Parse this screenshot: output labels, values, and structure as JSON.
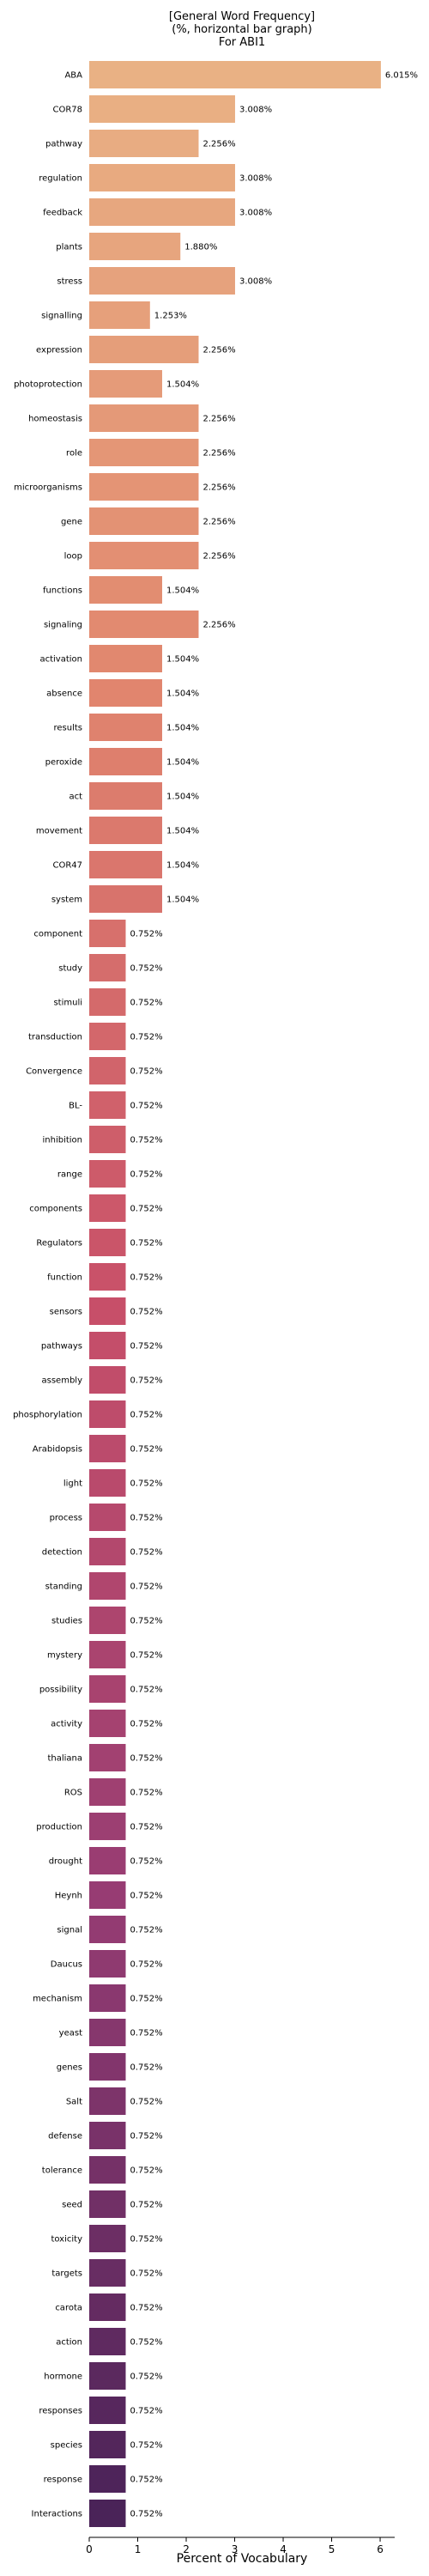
{
  "chart_data": {
    "type": "bar",
    "orientation": "horizontal",
    "title": [
      "[General Word Frequency]",
      "(%, horizontal bar graph)",
      "For ABI1"
    ],
    "xlabel": "Percent of Vocabulary",
    "ylabel": "",
    "xlim": [
      0,
      6.3
    ],
    "xticks": [
      0,
      1,
      2,
      3,
      4,
      5,
      6
    ],
    "grid": false,
    "palette": [
      "#e9b184",
      "#4a2358"
    ],
    "categories": [
      "ABA",
      "COR78",
      "pathway",
      "regulation",
      "feedback",
      "plants",
      "stress",
      "signalling",
      "expression",
      "photoprotection",
      "homeostasis",
      "role",
      "microorganisms",
      "gene",
      "loop",
      "functions",
      "signaling",
      "activation",
      "absence",
      "results",
      "peroxide",
      "act",
      "movement",
      "COR47",
      "system",
      "component",
      "study",
      "stimuli",
      "transduction",
      "Convergence",
      "BL-",
      "inhibition",
      "range",
      "components",
      "Regulators",
      "function",
      "sensors",
      "pathways",
      "assembly",
      "phosphorylation",
      "Arabidopsis",
      "light",
      "process",
      "detection",
      "standing",
      "studies",
      "mystery",
      "possibility",
      "activity",
      "thaliana",
      "ROS",
      "production",
      "drought",
      "Heynh",
      "signal",
      "Daucus",
      "mechanism",
      "yeast",
      "genes",
      "Salt",
      "defense",
      "tolerance",
      "seed",
      "toxicity",
      "targets",
      "carota",
      "action",
      "hormone",
      "responses",
      "species",
      "response",
      "Interactions"
    ],
    "values": [
      6.015,
      3.008,
      2.256,
      3.008,
      3.008,
      1.88,
      3.008,
      1.253,
      2.256,
      1.504,
      2.256,
      2.256,
      2.256,
      2.256,
      2.256,
      1.504,
      2.256,
      1.504,
      1.504,
      1.504,
      1.504,
      1.504,
      1.504,
      1.504,
      1.504,
      0.752,
      0.752,
      0.752,
      0.752,
      0.752,
      0.752,
      0.752,
      0.752,
      0.752,
      0.752,
      0.752,
      0.752,
      0.752,
      0.752,
      0.752,
      0.752,
      0.752,
      0.752,
      0.752,
      0.752,
      0.752,
      0.752,
      0.752,
      0.752,
      0.752,
      0.752,
      0.752,
      0.752,
      0.752,
      0.752,
      0.752,
      0.752,
      0.752,
      0.752,
      0.752,
      0.752,
      0.752,
      0.752,
      0.752,
      0.752,
      0.752,
      0.752,
      0.752,
      0.752,
      0.752,
      0.752,
      0.752
    ],
    "labels": [
      "6.015%",
      "3.008%",
      "2.256%",
      "3.008%",
      "3.008%",
      "1.880%",
      "3.008%",
      "1.253%",
      "2.256%",
      "1.504%",
      "2.256%",
      "2.256%",
      "2.256%",
      "2.256%",
      "2.256%",
      "1.504%",
      "2.256%",
      "1.504%",
      "1.504%",
      "1.504%",
      "1.504%",
      "1.504%",
      "1.504%",
      "1.504%",
      "1.504%",
      "0.752%",
      "0.752%",
      "0.752%",
      "0.752%",
      "0.752%",
      "0.752%",
      "0.752%",
      "0.752%",
      "0.752%",
      "0.752%",
      "0.752%",
      "0.752%",
      "0.752%",
      "0.752%",
      "0.752%",
      "0.752%",
      "0.752%",
      "0.752%",
      "0.752%",
      "0.752%",
      "0.752%",
      "0.752%",
      "0.752%",
      "0.752%",
      "0.752%",
      "0.752%",
      "0.752%",
      "0.752%",
      "0.752%",
      "0.752%",
      "0.752%",
      "0.752%",
      "0.752%",
      "0.752%",
      "0.752%",
      "0.752%",
      "0.752%",
      "0.752%",
      "0.752%",
      "0.752%",
      "0.752%",
      "0.752%",
      "0.752%",
      "0.752%",
      "0.752%",
      "0.752%",
      "0.752%"
    ]
  }
}
